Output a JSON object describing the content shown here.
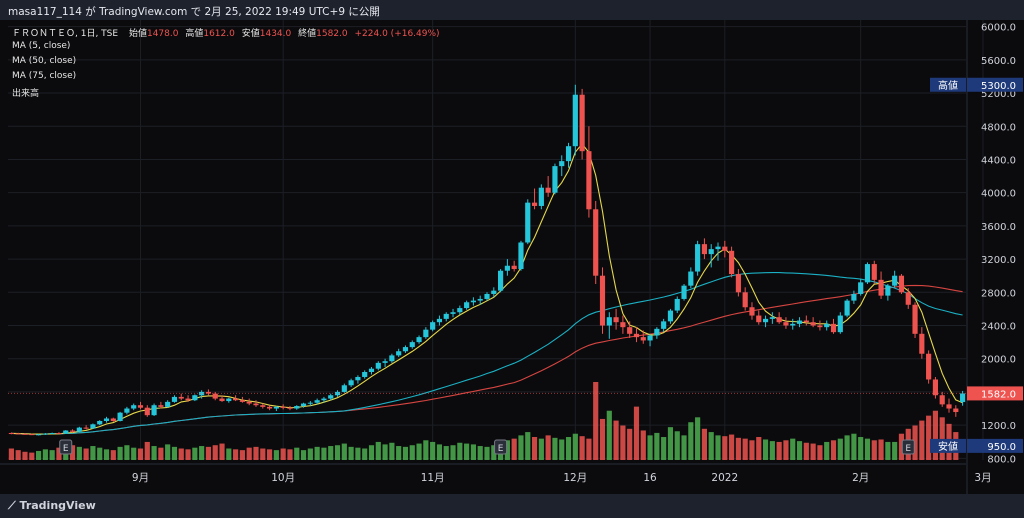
{
  "header": {
    "text": "masa117_114 が TradingView.com で 2月 25, 2022 19:49 UTC+9 に公開"
  },
  "footer": {
    "logo_text": "TradingView"
  },
  "legend": {
    "symbol": "ＦＲＯＮＴＥＯ, 1日, TSE",
    "ohlc": [
      {
        "label": "始値",
        "value": "1478.0"
      },
      {
        "label": "高値",
        "value": "1612.0"
      },
      {
        "label": "安値",
        "value": "1434.0"
      },
      {
        "label": "終値",
        "value": "1582.0"
      }
    ],
    "change": "+224.0 (+16.49%)",
    "indicators": [
      "MA (5, close)",
      "MA (50, close)",
      "MA (75, close)",
      "出来高"
    ]
  },
  "tags": {
    "high_label": "高値",
    "high_value": "5300.0",
    "low_label": "安値",
    "low_value": "950.0",
    "last_value": "1582.0",
    "earnings_marker": "E"
  },
  "colors": {
    "up": "#26c6da",
    "down": "#ef5350",
    "ma5": "#e6d84a",
    "ma50": "#1bb0c4",
    "ma75": "#d64541",
    "vol_up": "#4caf50",
    "vol_down": "#ef5350",
    "tag_bg": "#1f3a7a",
    "last_bg": "#ef5350"
  },
  "chart_data": {
    "type": "candlestick",
    "title": "ＦＲＯＮＴＥＯ, 1日, TSE",
    "y_axis": {
      "ticks": [
        800,
        1200,
        1600,
        2000,
        2400,
        2800,
        3200,
        3600,
        4000,
        4400,
        4800,
        5200,
        5600,
        6000
      ],
      "tick_labels": [
        "800.0",
        "1200.0",
        "1600.0",
        "2000.0",
        "2400.0",
        "2800.0",
        "3200.0",
        "3600.0",
        "4000.0",
        "4400.0",
        "4800.0",
        "5200.0",
        "5600.0",
        "6000.0"
      ],
      "ylim": [
        780,
        6080
      ],
      "position": "right"
    },
    "x_axis": {
      "labels": [
        "9月",
        "10月",
        "11月",
        "12月",
        "16",
        "2022",
        "2月",
        "3月"
      ],
      "label_index": [
        19,
        40,
        62,
        83,
        94,
        105,
        125,
        143
      ]
    },
    "earnings_index": [
      8,
      72,
      132
    ],
    "candles": [
      [
        1105,
        1112,
        1090,
        1100
      ],
      [
        1100,
        1108,
        1088,
        1095
      ],
      [
        1095,
        1102,
        1085,
        1092
      ],
      [
        1092,
        1098,
        1080,
        1085
      ],
      [
        1085,
        1095,
        1075,
        1090
      ],
      [
        1090,
        1105,
        1082,
        1098
      ],
      [
        1098,
        1110,
        1090,
        1105
      ],
      [
        1105,
        1115,
        1095,
        1100
      ],
      [
        1100,
        1140,
        1095,
        1135
      ],
      [
        1135,
        1150,
        1110,
        1120
      ],
      [
        1120,
        1180,
        1115,
        1170
      ],
      [
        1170,
        1200,
        1150,
        1160
      ],
      [
        1160,
        1220,
        1155,
        1210
      ],
      [
        1210,
        1260,
        1200,
        1250
      ],
      [
        1250,
        1300,
        1230,
        1280
      ],
      [
        1280,
        1290,
        1240,
        1250
      ],
      [
        1250,
        1360,
        1245,
        1350
      ],
      [
        1350,
        1420,
        1330,
        1400
      ],
      [
        1400,
        1460,
        1380,
        1440
      ],
      [
        1440,
        1480,
        1390,
        1410
      ],
      [
        1410,
        1440,
        1300,
        1320
      ],
      [
        1320,
        1460,
        1310,
        1440
      ],
      [
        1440,
        1480,
        1400,
        1420
      ],
      [
        1420,
        1500,
        1410,
        1480
      ],
      [
        1480,
        1560,
        1470,
        1540
      ],
      [
        1540,
        1580,
        1500,
        1520
      ],
      [
        1520,
        1560,
        1480,
        1500
      ],
      [
        1500,
        1570,
        1490,
        1560
      ],
      [
        1560,
        1620,
        1520,
        1600
      ],
      [
        1600,
        1630,
        1560,
        1580
      ],
      [
        1580,
        1600,
        1500,
        1520
      ],
      [
        1520,
        1560,
        1480,
        1490
      ],
      [
        1490,
        1530,
        1470,
        1520
      ],
      [
        1520,
        1560,
        1490,
        1500
      ],
      [
        1500,
        1540,
        1470,
        1480
      ],
      [
        1480,
        1520,
        1440,
        1460
      ],
      [
        1460,
        1500,
        1420,
        1440
      ],
      [
        1440,
        1460,
        1400,
        1420
      ],
      [
        1420,
        1440,
        1380,
        1400
      ],
      [
        1400,
        1430,
        1370,
        1420
      ],
      [
        1420,
        1450,
        1390,
        1410
      ],
      [
        1410,
        1430,
        1380,
        1400
      ],
      [
        1400,
        1440,
        1385,
        1430
      ],
      [
        1430,
        1470,
        1410,
        1460
      ],
      [
        1460,
        1490,
        1430,
        1470
      ],
      [
        1470,
        1520,
        1450,
        1500
      ],
      [
        1500,
        1540,
        1470,
        1520
      ],
      [
        1520,
        1580,
        1500,
        1560
      ],
      [
        1560,
        1620,
        1540,
        1600
      ],
      [
        1600,
        1700,
        1590,
        1680
      ],
      [
        1680,
        1760,
        1660,
        1740
      ],
      [
        1740,
        1800,
        1700,
        1780
      ],
      [
        1780,
        1860,
        1760,
        1840
      ],
      [
        1840,
        1900,
        1810,
        1880
      ],
      [
        1880,
        1970,
        1860,
        1950
      ],
      [
        1950,
        2000,
        1900,
        1970
      ],
      [
        1970,
        2060,
        1950,
        2040
      ],
      [
        2040,
        2120,
        2020,
        2090
      ],
      [
        2090,
        2160,
        2070,
        2140
      ],
      [
        2140,
        2220,
        2120,
        2200
      ],
      [
        2200,
        2280,
        2180,
        2260
      ],
      [
        2260,
        2380,
        2240,
        2350
      ],
      [
        2350,
        2460,
        2330,
        2440
      ],
      [
        2440,
        2520,
        2400,
        2480
      ],
      [
        2480,
        2560,
        2450,
        2540
      ],
      [
        2540,
        2600,
        2500,
        2560
      ],
      [
        2560,
        2640,
        2530,
        2610
      ],
      [
        2610,
        2700,
        2590,
        2680
      ],
      [
        2680,
        2740,
        2640,
        2700
      ],
      [
        2700,
        2760,
        2650,
        2720
      ],
      [
        2720,
        2800,
        2700,
        2780
      ],
      [
        2780,
        2860,
        2740,
        2820
      ],
      [
        2820,
        3080,
        2800,
        3060
      ],
      [
        3060,
        3200,
        3000,
        3120
      ],
      [
        3120,
        3180,
        3050,
        3080
      ],
      [
        3080,
        3420,
        3060,
        3400
      ],
      [
        3400,
        3920,
        3380,
        3880
      ],
      [
        3880,
        4050,
        3800,
        3840
      ],
      [
        3840,
        4100,
        3800,
        4060
      ],
      [
        4060,
        4200,
        3950,
        4000
      ],
      [
        4000,
        4350,
        3980,
        4320
      ],
      [
        4320,
        4450,
        4200,
        4380
      ],
      [
        4380,
        4600,
        4300,
        4560
      ],
      [
        4560,
        5300,
        4450,
        5180
      ],
      [
        5180,
        5250,
        4400,
        4500
      ],
      [
        4500,
        4800,
        3700,
        3800
      ],
      [
        3800,
        3900,
        2900,
        3000
      ],
      [
        3000,
        3100,
        2300,
        2400
      ],
      [
        2400,
        2560,
        2240,
        2500
      ],
      [
        2500,
        2600,
        2350,
        2440
      ],
      [
        2440,
        2520,
        2300,
        2380
      ],
      [
        2380,
        2450,
        2250,
        2300
      ],
      [
        2300,
        2380,
        2200,
        2260
      ],
      [
        2260,
        2340,
        2180,
        2220
      ],
      [
        2220,
        2300,
        2150,
        2280
      ],
      [
        2280,
        2380,
        2240,
        2360
      ],
      [
        2360,
        2480,
        2320,
        2450
      ],
      [
        2450,
        2600,
        2420,
        2580
      ],
      [
        2580,
        2750,
        2550,
        2720
      ],
      [
        2720,
        2900,
        2700,
        2880
      ],
      [
        2880,
        3100,
        2850,
        3050
      ],
      [
        3050,
        3420,
        3000,
        3380
      ],
      [
        3380,
        3450,
        3200,
        3260
      ],
      [
        3260,
        3380,
        3100,
        3320
      ],
      [
        3320,
        3400,
        3180,
        3350
      ],
      [
        3350,
        3420,
        3220,
        3300
      ],
      [
        3300,
        3350,
        2980,
        3020
      ],
      [
        3020,
        3080,
        2750,
        2800
      ],
      [
        2800,
        2860,
        2580,
        2620
      ],
      [
        2620,
        2680,
        2470,
        2520
      ],
      [
        2520,
        2580,
        2410,
        2440
      ],
      [
        2440,
        2520,
        2380,
        2480
      ],
      [
        2480,
        2560,
        2420,
        2500
      ],
      [
        2500,
        2560,
        2420,
        2440
      ],
      [
        2440,
        2500,
        2360,
        2400
      ],
      [
        2400,
        2480,
        2350,
        2420
      ],
      [
        2420,
        2500,
        2380,
        2460
      ],
      [
        2460,
        2520,
        2400,
        2440
      ],
      [
        2440,
        2500,
        2380,
        2400
      ],
      [
        2400,
        2460,
        2340,
        2380
      ],
      [
        2380,
        2460,
        2340,
        2420
      ],
      [
        2420,
        2480,
        2300,
        2320
      ],
      [
        2320,
        2560,
        2300,
        2520
      ],
      [
        2520,
        2720,
        2500,
        2700
      ],
      [
        2700,
        2820,
        2660,
        2780
      ],
      [
        2780,
        2960,
        2760,
        2920
      ],
      [
        2920,
        3160,
        2900,
        3140
      ],
      [
        3140,
        3180,
        2900,
        2950
      ],
      [
        2950,
        3050,
        2720,
        2760
      ],
      [
        2760,
        2900,
        2700,
        2880
      ],
      [
        2880,
        3060,
        2860,
        3000
      ],
      [
        3000,
        3020,
        2780,
        2800
      ],
      [
        2800,
        2850,
        2600,
        2650
      ],
      [
        2650,
        2680,
        2250,
        2300
      ],
      [
        2300,
        2380,
        2000,
        2060
      ],
      [
        2060,
        2100,
        1700,
        1750
      ],
      [
        1750,
        1780,
        1520,
        1560
      ],
      [
        1560,
        1600,
        1420,
        1450
      ],
      [
        1450,
        1520,
        1350,
        1400
      ],
      [
        1400,
        1440,
        1300,
        1358
      ],
      [
        1478,
        1612,
        1434,
        1582
      ]
    ],
    "volume": [
      14,
      12,
      10,
      9,
      11,
      13,
      12,
      15,
      20,
      18,
      16,
      14,
      17,
      15,
      13,
      12,
      16,
      18,
      15,
      14,
      22,
      17,
      15,
      19,
      16,
      14,
      13,
      15,
      17,
      16,
      18,
      20,
      14,
      13,
      12,
      15,
      16,
      14,
      13,
      12,
      14,
      13,
      15,
      12,
      14,
      16,
      15,
      17,
      18,
      20,
      16,
      15,
      14,
      18,
      22,
      19,
      21,
      17,
      16,
      18,
      20,
      24,
      22,
      19,
      17,
      18,
      21,
      20,
      19,
      17,
      16,
      18,
      22,
      24,
      26,
      30,
      34,
      28,
      26,
      30,
      27,
      25,
      28,
      32,
      29,
      26,
      95,
      50,
      60,
      48,
      42,
      38,
      65,
      36,
      30,
      33,
      28,
      40,
      35,
      30,
      46,
      52,
      38,
      34,
      30,
      29,
      31,
      27,
      26,
      24,
      28,
      25,
      23,
      22,
      24,
      26,
      23,
      21,
      20,
      18,
      22,
      24,
      26,
      30,
      32,
      28,
      26,
      24,
      25,
      22,
      22,
      32,
      38,
      42,
      48,
      54,
      60,
      52,
      44,
      34
    ]
  }
}
